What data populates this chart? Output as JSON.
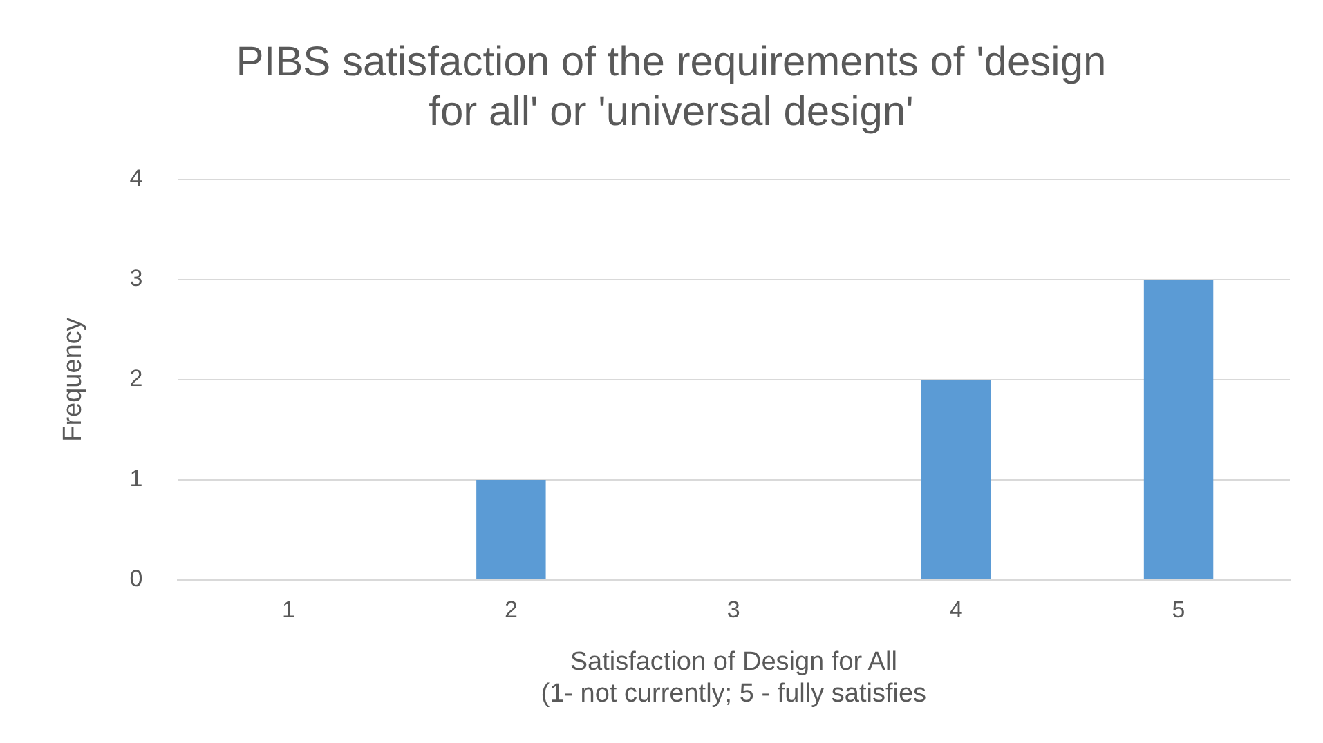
{
  "chart_data": {
    "type": "bar",
    "title": "PIBS satisfaction of the requirements of 'design\nfor all' or 'universal design'",
    "xlabel": "Satisfaction of Design for All\n(1- not currently; 5 - fully satisfies",
    "ylabel": "Frequency",
    "categories": [
      "1",
      "2",
      "3",
      "4",
      "5"
    ],
    "values": [
      0,
      1,
      0,
      2,
      3
    ],
    "color": "#5b9bd5",
    "ylim": [
      0,
      4
    ],
    "yticks": [
      0,
      1,
      2,
      3,
      4
    ],
    "grid": "y",
    "legend": false
  }
}
